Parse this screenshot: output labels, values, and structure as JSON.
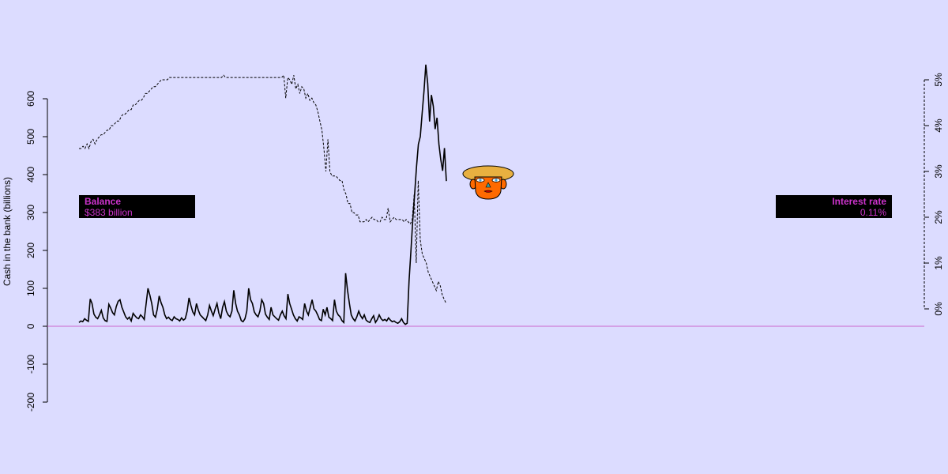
{
  "colors": {
    "background": "#dcdcff",
    "zero_line": "#cc66cc",
    "box_text": "#cc33cc",
    "face_skin": "#ff6a00",
    "face_hair": "#e8b040"
  },
  "balance_box": {
    "title": "Balance",
    "value": "$383 billion"
  },
  "rate_box": {
    "title": "Interest rate",
    "value": "0.11%"
  },
  "mascot": {
    "icon": "face-icon"
  },
  "chart_data": {
    "type": "line",
    "ylabel": "Cash in the bank (billions)",
    "ylim": [
      -200,
      600
    ],
    "yticks": [
      "-200",
      "-100",
      "0",
      "100",
      "200",
      "300",
      "400",
      "500",
      "600"
    ],
    "y2ticks": [
      "0%",
      "1%",
      "2%",
      "3%",
      "4%",
      "5%"
    ],
    "y2lim": [
      0,
      5
    ],
    "grid": false,
    "reference_line": 0,
    "series": [
      {
        "style": "solid",
        "axis": "left",
        "values": [
          10,
          14,
          12,
          20,
          16,
          13,
          72,
          60,
          32,
          24,
          20,
          30,
          42,
          22,
          15,
          13,
          58,
          48,
          36,
          30,
          52,
          66,
          70,
          50,
          38,
          25,
          19,
          24,
          14,
          34,
          28,
          22,
          20,
          30,
          25,
          18,
          60,
          100,
          82,
          60,
          30,
          24,
          45,
          80,
          62,
          50,
          30,
          20,
          24,
          18,
          15,
          25,
          20,
          18,
          14,
          22,
          16,
          20,
          40,
          75,
          55,
          38,
          30,
          60,
          42,
          30,
          25,
          20,
          15,
          30,
          55,
          40,
          28,
          45,
          60,
          35,
          20,
          50,
          65,
          40,
          30,
          25,
          40,
          95,
          60,
          40,
          30,
          15,
          12,
          20,
          40,
          100,
          70,
          60,
          38,
          30,
          25,
          40,
          70,
          60,
          32,
          24,
          18,
          50,
          30,
          25,
          20,
          16,
          30,
          40,
          28,
          20,
          85,
          60,
          45,
          30,
          20,
          14,
          25,
          22,
          18,
          60,
          40,
          30,
          50,
          70,
          46,
          40,
          30,
          18,
          15,
          45,
          30,
          50,
          24,
          20,
          15,
          70,
          40,
          30,
          25,
          15,
          10,
          140,
          95,
          60,
          30,
          20,
          14,
          25,
          40,
          28,
          20,
          30,
          16,
          12,
          10,
          20,
          28,
          10,
          18,
          30,
          20,
          15,
          18,
          14,
          22,
          16,
          12,
          14,
          10,
          8,
          12,
          20,
          10,
          5,
          8,
          120,
          200,
          280,
          350,
          420,
          480,
          500,
          560,
          620,
          690,
          640,
          540,
          610,
          580,
          520,
          550,
          480,
          440,
          410,
          470,
          383
        ]
      },
      {
        "style": "dashed",
        "axis": "right",
        "values": [
          3.5,
          3.5,
          3.55,
          3.5,
          3.6,
          3.5,
          3.65,
          3.7,
          3.6,
          3.7,
          3.75,
          3.8,
          3.8,
          3.85,
          3.9,
          3.9,
          4.0,
          4.0,
          4.05,
          4.1,
          4.1,
          4.2,
          4.25,
          4.25,
          4.3,
          4.35,
          4.35,
          4.45,
          4.45,
          4.5,
          4.55,
          4.55,
          4.6,
          4.7,
          4.7,
          4.75,
          4.8,
          4.85,
          4.85,
          4.9,
          4.95,
          5.0,
          5.0,
          5.0,
          5.0,
          5.05,
          5.05,
          5.05,
          5.05,
          5.05,
          5.05,
          5.05,
          5.05,
          5.05,
          5.05,
          5.05,
          5.05,
          5.05,
          5.05,
          5.05,
          5.05,
          5.05,
          5.05,
          5.05,
          5.05,
          5.05,
          5.05,
          5.05,
          5.05,
          5.05,
          5.05,
          5.05,
          5.1,
          5.05,
          5.05,
          5.05,
          5.05,
          5.05,
          5.05,
          5.05,
          5.05,
          5.05,
          5.05,
          5.05,
          5.05,
          5.05,
          5.05,
          5.05,
          5.05,
          5.05,
          5.05,
          5.05,
          5.05,
          5.05,
          5.05,
          5.05,
          5.05,
          5.05,
          5.05,
          5.05,
          5.05,
          5.05,
          5.1,
          4.6,
          5.05,
          5.0,
          4.9,
          5.1,
          4.8,
          4.9,
          4.7,
          4.85,
          4.8,
          4.6,
          4.7,
          4.55,
          4.6,
          4.5,
          4.45,
          4.3,
          4.1,
          3.9,
          3.5,
          3.0,
          3.7,
          3.0,
          2.9,
          2.9,
          2.9,
          2.85,
          2.8,
          2.8,
          2.6,
          2.5,
          2.3,
          2.3,
          2.1,
          2.1,
          2.05,
          2.05,
          1.9,
          1.9,
          1.9,
          1.95,
          1.9,
          1.95,
          2.0,
          1.95,
          1.95,
          1.9,
          1.9,
          2.0,
          1.95,
          1.95,
          2.2,
          1.9,
          1.95,
          2.0,
          1.95,
          1.95,
          1.95,
          1.95,
          1.9,
          1.95,
          1.9,
          1.85,
          1.95,
          2.5,
          1.0,
          2.8,
          1.5,
          1.2,
          1.1,
          1.0,
          0.8,
          0.7,
          0.6,
          0.5,
          0.4,
          0.6,
          0.5,
          0.3,
          0.2,
          0.11
        ]
      }
    ]
  }
}
